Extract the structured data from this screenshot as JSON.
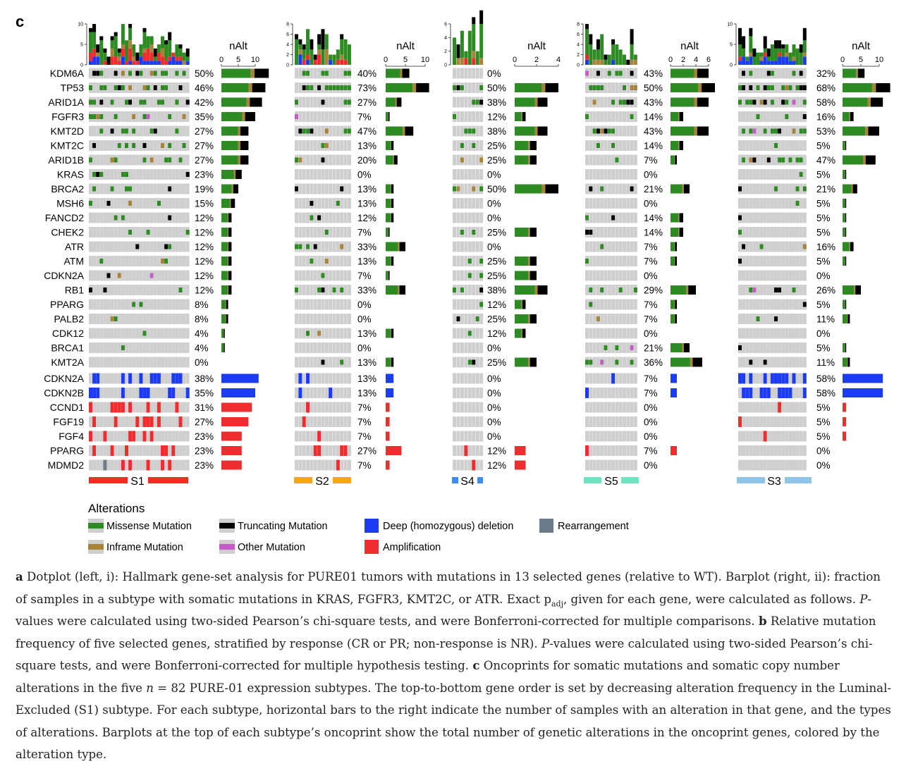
{
  "panel_label": "c",
  "nalt_title": "nAlt",
  "legend": {
    "title": "Alterations",
    "items": [
      {
        "label": "Missense Mutation",
        "color": "#2e8b24"
      },
      {
        "label": "Truncating Mutation",
        "color": "#000000"
      },
      {
        "label": "Deep (homozygous) deletion",
        "color": "#1b3cf2"
      },
      {
        "label": "Rearrangement",
        "color": "#6b7b8c"
      },
      {
        "label": "Inframe Mutation",
        "color": "#a8833a"
      },
      {
        "label": "Other Mutation",
        "color": "#c45ec4"
      },
      {
        "label": "Amplification",
        "color": "#ee2e2e"
      }
    ]
  },
  "genes": [
    "KDM6A",
    "TP53",
    "ARID1A",
    "FGFR3",
    "KMT2D",
    "KMT2C",
    "ARID1B",
    "KRAS",
    "BRCA2",
    "MSH6",
    "FANCD2",
    "CHEK2",
    "ATR",
    "ATM",
    "CDKN2A",
    "RB1",
    "PPARG",
    "PALB2",
    "CDK12",
    "BRCA1",
    "KMT2A",
    "CDKN2A",
    "CDKN2B",
    "CCND1",
    "FGF19",
    "FGF4",
    "PPARG",
    "MDMD2"
  ],
  "chart_data": [
    {
      "type": "oncoprint",
      "subtype": "S1",
      "top_axis_ticks": [
        "0",
        "5",
        "10"
      ],
      "nalt_ticks": [
        "0",
        "5",
        "10"
      ],
      "percents": [
        "50%",
        "46%",
        "42%",
        "35%",
        "27%",
        "27%",
        "27%",
        "23%",
        "19%",
        "15%",
        "12%",
        "12%",
        "12%",
        "12%",
        "12%",
        "12%",
        "8%",
        "8%",
        "4%",
        "4%",
        "0%",
        "38%",
        "35%",
        "31%",
        "27%",
        "23%",
        "23%",
        "23%"
      ]
    },
    {
      "type": "oncoprint",
      "subtype": "S2",
      "top_axis_ticks": [
        "0",
        "2",
        "4",
        "6",
        "8"
      ],
      "nalt_ticks": [
        "0",
        "5",
        "10"
      ],
      "percents": [
        "40%",
        "73%",
        "27%",
        "7%",
        "47%",
        "13%",
        "20%",
        "0%",
        "13%",
        "13%",
        "12%",
        "7%",
        "33%",
        "13%",
        "7%",
        "33%",
        "0%",
        "0%",
        "13%",
        "0%",
        "13%",
        "13%",
        "13%",
        "7%",
        "7%",
        "7%",
        "27%",
        "7%"
      ]
    },
    {
      "type": "oncoprint",
      "subtype": "S4",
      "top_axis_ticks": [
        "0",
        "2",
        "4",
        "6"
      ],
      "nalt_ticks": [
        "0",
        "2",
        "4"
      ],
      "percents": [
        "0%",
        "50%",
        "38%",
        "12%",
        "38%",
        "25%",
        "25%",
        "0%",
        "50%",
        "0%",
        "0%",
        "25%",
        "0%",
        "25%",
        "25%",
        "38%",
        "12%",
        "25%",
        "12%",
        "0%",
        "25%",
        "0%",
        "0%",
        "0%",
        "0%",
        "0%",
        "12%",
        "12%"
      ]
    },
    {
      "type": "oncoprint",
      "subtype": "S5",
      "top_axis_ticks": [
        "0",
        "2",
        "4",
        "6",
        "8"
      ],
      "nalt_ticks": [
        "0",
        "2",
        "4",
        "6"
      ],
      "percents": [
        "43%",
        "50%",
        "43%",
        "14%",
        "43%",
        "14%",
        "7%",
        "0%",
        "21%",
        "0%",
        "14%",
        "14%",
        "7%",
        "7%",
        "0%",
        "29%",
        "7%",
        "7%",
        "0%",
        "21%",
        "36%",
        "7%",
        "7%",
        "0%",
        "0%",
        "0%",
        "7%",
        "0%"
      ]
    },
    {
      "type": "oncoprint",
      "subtype": "S3",
      "top_axis_ticks": [
        "0",
        "5",
        "10"
      ],
      "nalt_ticks": [
        "0",
        "5",
        "10"
      ],
      "percents": [
        "32%",
        "68%",
        "58%",
        "16%",
        "53%",
        "5%",
        "47%",
        "5%",
        "21%",
        "5%",
        "5%",
        "5%",
        "16%",
        "5%",
        "0%",
        "26%",
        "5%",
        "11%",
        "0%",
        "5%",
        "11%",
        "58%",
        "58%",
        "5%",
        "5%",
        "5%",
        "0%",
        "0%"
      ]
    }
  ],
  "caption": {
    "a_label": "a",
    "a_text": "Dotplot (left, i): Hallmark gene-set analysis for PURE01 tumors with mutations in 13 selected genes (relative to WT). Barplot (right, ii): fraction of samples in a subtype with somatic mutations in KRAS, FGFR3, KMT2C, or ATR. Exact p",
    "a_sub": "adj",
    "a_text2": ", given for each gene, were calculated as follows.",
    "p1": "P",
    "a_text3": "-values were calculated using two-sided Pearson’s chi-square tests, and were Bonferroni-corrected for multiple comparisons.",
    "b_label": "b",
    "b_text": "Relative mutation frequency of five selected genes, stratified by response (CR or PR; non-response is NR).",
    "p2": "P",
    "b_text2": "-values were calculated using two-sided Pearson’s chi-square tests, and were Bonferroni-corrected for multiple hypothesis testing.",
    "c_label": "c",
    "c_text": "Oncoprints for somatic mutations and somatic copy number alterations in the five",
    "n_var": "n",
    "c_text2": " = 82 PURE-01 expression subtypes. The top-to-bottom gene order is set by decreasing alteration frequency in the Luminal-Excluded (S1) subtype. For each subtype, horizontal bars to the right indicate the number of samples with an alteration in that gene, and the types of alterations. Barplots at the top of each subtype’s oncoprint show the total number of genetic alterations in the oncoprint genes, colored by the alteration type."
  }
}
